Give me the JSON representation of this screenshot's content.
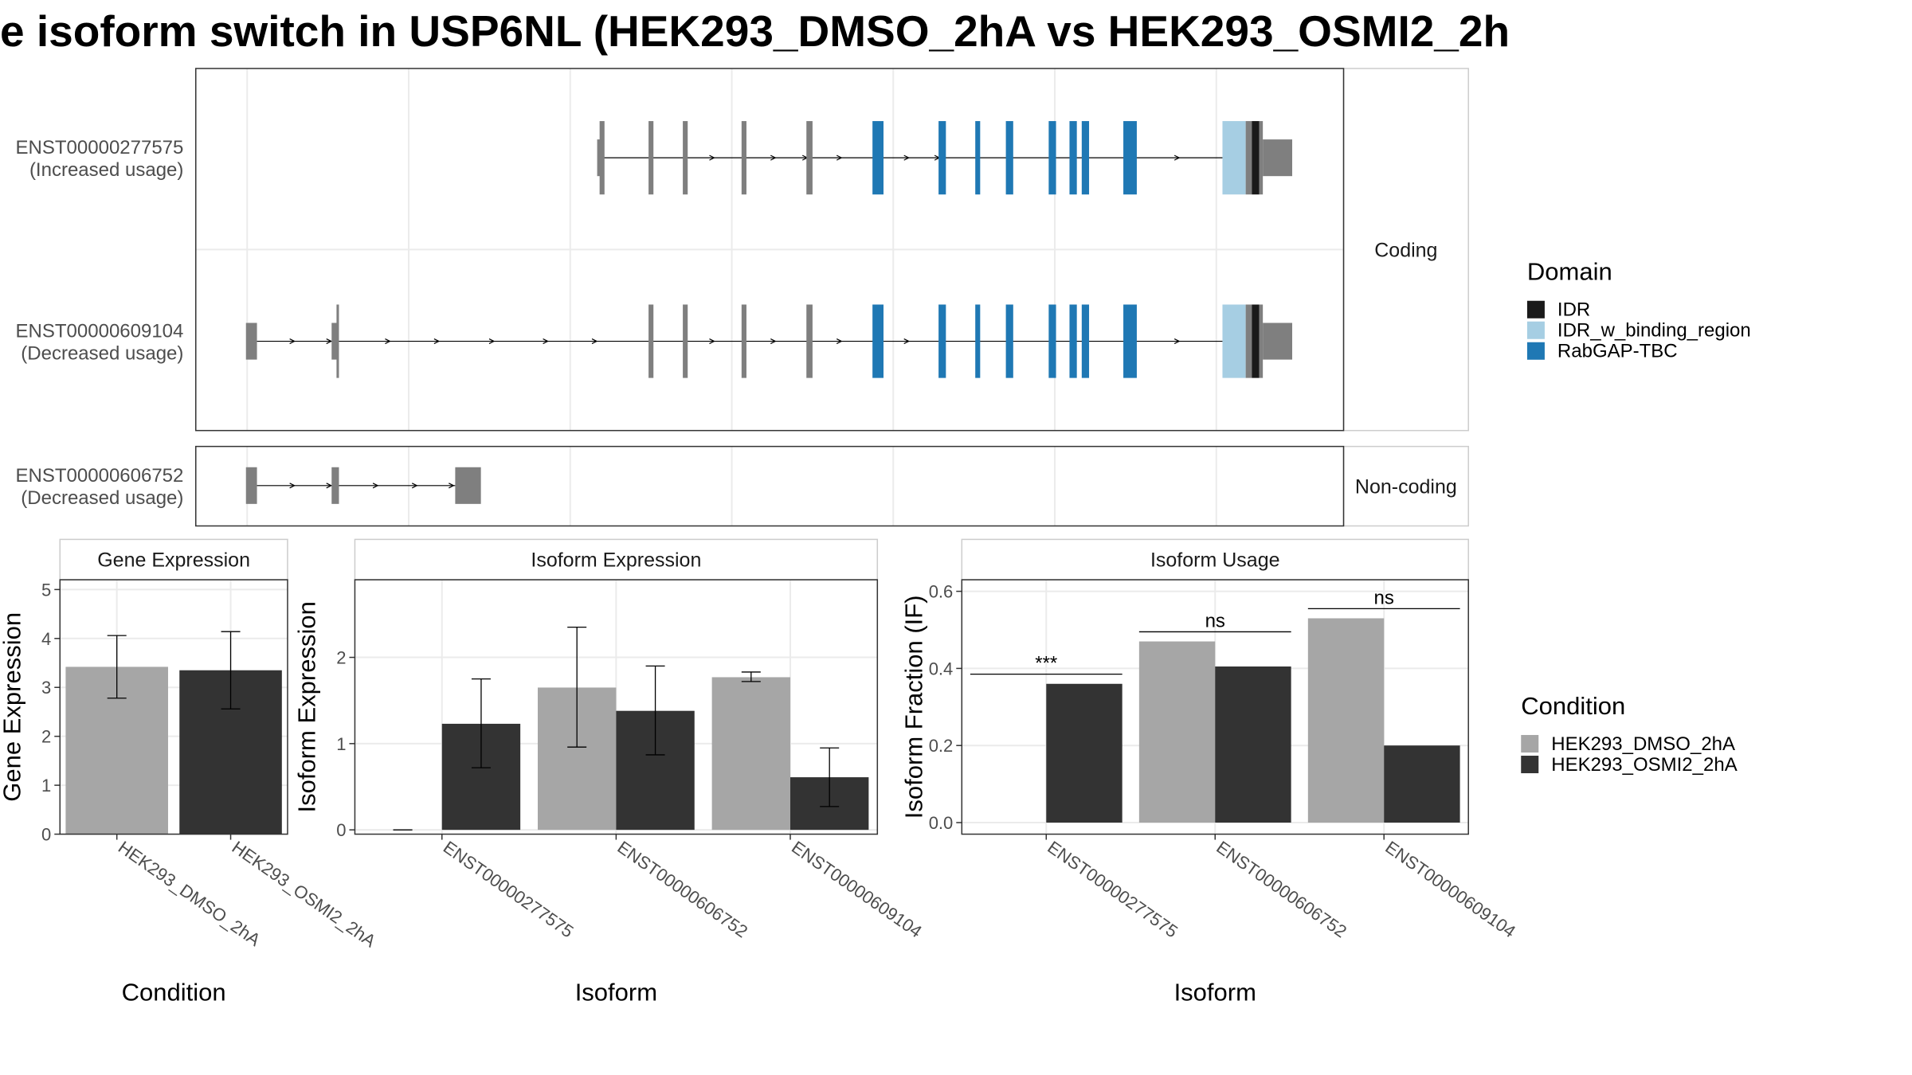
{
  "title": "e isoform switch in USP6NL (HEK293_DMSO_2hA vs HEK293_OSMI2_2h",
  "colors": {
    "exon": "#7f7f7f",
    "IDR": "#1a1a1a",
    "IDR_w_binding_region": "#a6cee3",
    "RabGAP-TBC": "#1f78b4",
    "HEK293_DMSO_2hA": "#a6a6a6",
    "HEK293_OSMI2_2hA": "#333333"
  },
  "structure": {
    "strips": [
      "Coding",
      "Non-coding"
    ],
    "transcripts": [
      {
        "id": "ENST00000277575",
        "usage": "(Increased usage)",
        "group": "Coding",
        "exons": [
          {
            "x0": 488,
            "x1": 493,
            "h": "utr"
          },
          {
            "x0": 490,
            "x1": 494,
            "h": "cds"
          },
          {
            "x0": 530,
            "x1": 534,
            "h": "cds"
          },
          {
            "x0": 558,
            "x1": 562,
            "h": "cds"
          },
          {
            "x0": 606,
            "x1": 610,
            "h": "cds"
          },
          {
            "x0": 659,
            "x1": 664,
            "h": "cds"
          },
          {
            "x0": 713,
            "x1": 722,
            "h": "cds",
            "d": "RabGAP-TBC"
          },
          {
            "x0": 767,
            "x1": 773,
            "h": "cds",
            "d": "RabGAP-TBC"
          },
          {
            "x0": 797,
            "x1": 801,
            "h": "cds",
            "d": "RabGAP-TBC"
          },
          {
            "x0": 822,
            "x1": 828,
            "h": "cds",
            "d": "RabGAP-TBC"
          },
          {
            "x0": 857,
            "x1": 863,
            "h": "cds",
            "d": "RabGAP-TBC"
          },
          {
            "x0": 874,
            "x1": 880,
            "h": "cds",
            "d": "RabGAP-TBC"
          },
          {
            "x0": 884,
            "x1": 890,
            "h": "cds",
            "d": "RabGAP-TBC"
          },
          {
            "x0": 918,
            "x1": 929,
            "h": "cds",
            "d": "RabGAP-TBC"
          },
          {
            "x0": 999,
            "x1": 1018,
            "h": "cds",
            "d": "IDR_w_binding_region"
          },
          {
            "x0": 1018,
            "x1": 1023,
            "h": "cds"
          },
          {
            "x0": 1023,
            "x1": 1029,
            "h": "cds",
            "d": "IDR"
          },
          {
            "x0": 1029,
            "x1": 1032,
            "h": "cds"
          },
          {
            "x0": 1032,
            "x1": 1056,
            "h": "utr"
          }
        ],
        "intron": [
          493,
          999
        ],
        "arrows": [
          583,
          633,
          659,
          687,
          742,
          767,
          963
        ]
      },
      {
        "id": "ENST00000609104",
        "usage": "(Decreased usage)",
        "group": "Coding",
        "exons": [
          {
            "x0": 201,
            "x1": 210,
            "h": "utr"
          },
          {
            "x0": 271,
            "x1": 276,
            "h": "utr"
          },
          {
            "x0": 275,
            "x1": 277,
            "h": "cds"
          },
          {
            "x0": 530,
            "x1": 534,
            "h": "cds"
          },
          {
            "x0": 558,
            "x1": 562,
            "h": "cds"
          },
          {
            "x0": 606,
            "x1": 610,
            "h": "cds"
          },
          {
            "x0": 659,
            "x1": 664,
            "h": "cds"
          },
          {
            "x0": 713,
            "x1": 722,
            "h": "cds",
            "d": "RabGAP-TBC"
          },
          {
            "x0": 767,
            "x1": 773,
            "h": "cds",
            "d": "RabGAP-TBC"
          },
          {
            "x0": 797,
            "x1": 801,
            "h": "cds",
            "d": "RabGAP-TBC"
          },
          {
            "x0": 822,
            "x1": 828,
            "h": "cds",
            "d": "RabGAP-TBC"
          },
          {
            "x0": 857,
            "x1": 863,
            "h": "cds",
            "d": "RabGAP-TBC"
          },
          {
            "x0": 874,
            "x1": 880,
            "h": "cds",
            "d": "RabGAP-TBC"
          },
          {
            "x0": 884,
            "x1": 890,
            "h": "cds",
            "d": "RabGAP-TBC"
          },
          {
            "x0": 918,
            "x1": 929,
            "h": "cds",
            "d": "RabGAP-TBC"
          },
          {
            "x0": 999,
            "x1": 1018,
            "h": "cds",
            "d": "IDR_w_binding_region"
          },
          {
            "x0": 1018,
            "x1": 1023,
            "h": "cds"
          },
          {
            "x0": 1023,
            "x1": 1029,
            "h": "cds",
            "d": "IDR"
          },
          {
            "x0": 1029,
            "x1": 1032,
            "h": "cds"
          },
          {
            "x0": 1032,
            "x1": 1056,
            "h": "utr"
          }
        ],
        "intron": [
          210,
          999
        ],
        "arrows": [
          240,
          270,
          318,
          358,
          403,
          447,
          487,
          583,
          633,
          687,
          742,
          963
        ]
      },
      {
        "id": "ENST00000606752",
        "usage": "(Decreased usage)",
        "group": "Non-coding",
        "exons": [
          {
            "x0": 201,
            "x1": 210,
            "h": "utr"
          },
          {
            "x0": 271,
            "x1": 277,
            "h": "utr"
          },
          {
            "x0": 372,
            "x1": 393,
            "h": "utr"
          }
        ],
        "intron": [
          210,
          372
        ],
        "arrows": [
          240,
          270,
          308,
          340,
          370
        ]
      }
    ]
  },
  "legends": {
    "domain": {
      "title": "Domain",
      "items": [
        "IDR",
        "IDR_w_binding_region",
        "RabGAP-TBC"
      ]
    },
    "condition": {
      "title": "Condition",
      "items": [
        "HEK293_DMSO_2hA",
        "HEK293_OSMI2_2hA"
      ]
    }
  },
  "chart_data": [
    {
      "type": "bar",
      "title": "Gene Expression",
      "xlabel": "Condition",
      "ylabel": "Gene Expression",
      "ylim": [
        0,
        5.2
      ],
      "yticks": [
        0,
        1,
        2,
        3,
        4,
        5
      ],
      "categories": [
        "HEK293_DMSO_2hA",
        "HEK293_OSMI2_2hA"
      ],
      "values": [
        3.42,
        3.35
      ],
      "err_low": [
        2.78,
        2.56
      ],
      "err_high": [
        4.06,
        4.14
      ]
    },
    {
      "type": "bar",
      "title": "Isoform Expression",
      "xlabel": "Isoform",
      "ylabel": "Isoform Expression",
      "ylim": [
        -0.05,
        2.9
      ],
      "yticks": [
        0,
        1,
        2
      ],
      "categories": [
        "ENST00000277575",
        "ENST00000606752",
        "ENST00000609104"
      ],
      "series": [
        {
          "name": "HEK293_DMSO_2hA",
          "values": [
            0,
            1.65,
            1.77
          ],
          "err_low": [
            0,
            0.96,
            1.72
          ],
          "err_high": [
            0,
            2.35,
            1.83
          ]
        },
        {
          "name": "HEK293_OSMI2_2hA",
          "values": [
            1.23,
            1.38,
            0.61
          ],
          "err_low": [
            0.72,
            0.87,
            0.27
          ],
          "err_high": [
            1.75,
            1.9,
            0.95
          ]
        }
      ]
    },
    {
      "type": "bar",
      "title": "Isoform Usage",
      "xlabel": "Isoform",
      "ylabel": "Isoform Fraction (IF)",
      "ylim": [
        -0.03,
        0.63
      ],
      "yticks": [
        "0.0",
        "0.2",
        "0.4",
        "0.6"
      ],
      "categories": [
        "ENST00000277575",
        "ENST00000606752",
        "ENST00000609104"
      ],
      "series": [
        {
          "name": "HEK293_DMSO_2hA",
          "values": [
            0,
            0.47,
            0.53
          ]
        },
        {
          "name": "HEK293_OSMI2_2hA",
          "values": [
            0.36,
            0.405,
            0.2
          ]
        }
      ],
      "significance": [
        {
          "category": "ENST00000277575",
          "label": "***",
          "level": 0.385
        },
        {
          "category": "ENST00000606752",
          "label": "ns",
          "level": 0.495
        },
        {
          "category": "ENST00000609104",
          "label": "ns",
          "level": 0.555
        }
      ]
    }
  ]
}
